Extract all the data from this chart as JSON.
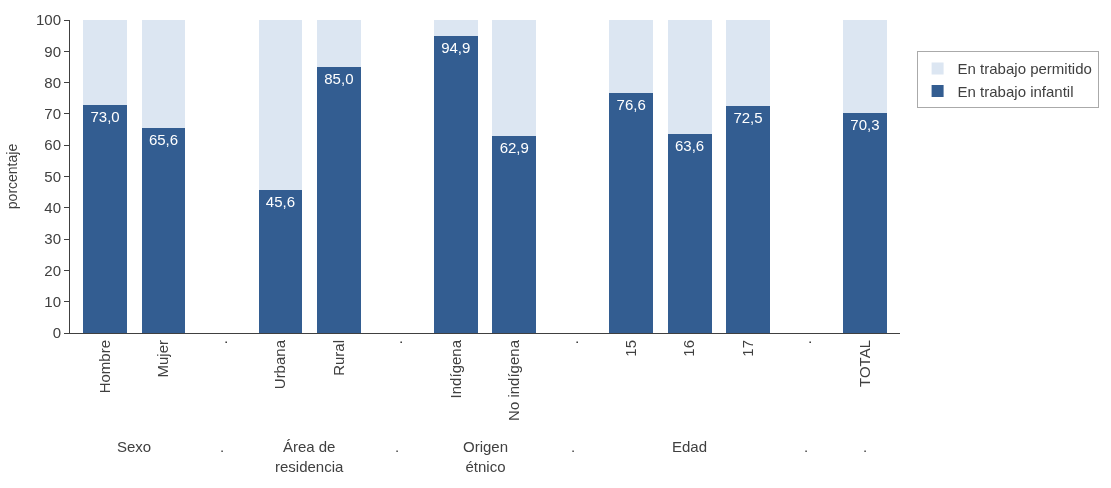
{
  "chart_data": {
    "type": "bar",
    "stacked": true,
    "ylabel": "porcentaje",
    "categories": [
      "Hombre",
      "Mujer",
      ".",
      "Urbana",
      "Rural",
      ".",
      "Indígena",
      "No indígena",
      ".",
      "15",
      "16",
      "17",
      ".",
      "TOTAL"
    ],
    "series": [
      {
        "name": "En trabajo infantil",
        "color": "#335d91",
        "values": [
          73.0,
          65.6,
          null,
          45.6,
          85.0,
          null,
          94.9,
          62.9,
          null,
          76.6,
          63.6,
          72.5,
          null,
          70.3
        ],
        "value_labels": [
          "73,0",
          "65,6",
          null,
          "45,6",
          "85,0",
          null,
          "94,9",
          "62,9",
          null,
          "76,6",
          "63,6",
          "72,5",
          null,
          "70,3"
        ]
      },
      {
        "name": "En trabajo permitido",
        "color": "#dce6f2",
        "values": [
          27.0,
          34.4,
          null,
          54.4,
          15.0,
          null,
          5.1,
          37.1,
          null,
          23.4,
          36.4,
          27.5,
          null,
          29.7
        ]
      }
    ],
    "annotations": [
      "Sexo",
      ".",
      "Área de residencia",
      ".",
      "Origen étnico",
      ".",
      "Edad",
      ".",
      "."
    ],
    "ylim": [
      0,
      100
    ],
    "yticks": [
      0,
      10,
      20,
      30,
      40,
      50,
      60,
      70,
      80,
      90,
      100
    ],
    "legend": "right"
  }
}
